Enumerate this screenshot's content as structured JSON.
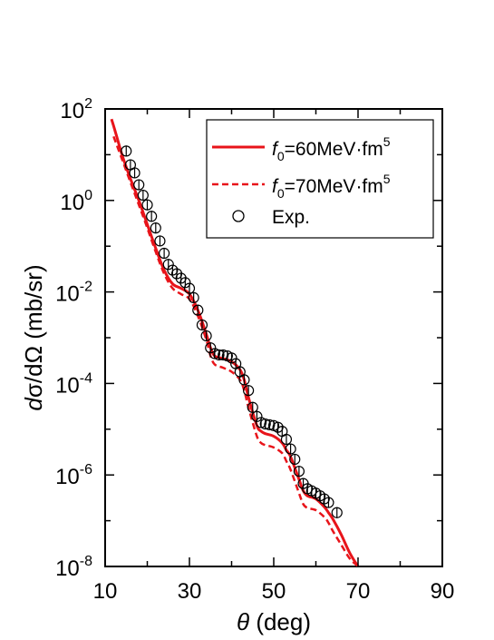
{
  "chart_data": {
    "type": "scatter",
    "xlabel": {
      "sym": "θ",
      "unit": " (deg)"
    },
    "ylabel": {
      "d": "d",
      "sigma": "σ",
      "slash": "/",
      "dOmega": "dΩ",
      "unit": " (mb/sr)"
    },
    "xlim": [
      10,
      90
    ],
    "ylim": [
      1e-08,
      100
    ],
    "y_scale": "log",
    "x_ticks": [
      "10",
      "30",
      "50",
      "70",
      "90"
    ],
    "y_ticks": [
      {
        "base": "10",
        "exp": "2"
      },
      {
        "base": "10",
        "exp": "0"
      },
      {
        "base": "10",
        "exp": "-2"
      },
      {
        "base": "10",
        "exp": "-4"
      },
      {
        "base": "10",
        "exp": "-6"
      },
      {
        "base": "10",
        "exp": "-8"
      }
    ],
    "legend_position": "top-right",
    "legend": [
      {
        "f": "f",
        "sub": "0",
        "text": "=60MeV·fm",
        "sup": "5"
      },
      {
        "f": "f",
        "sub": "0",
        "text": "=70MeV·fm",
        "sup": "5"
      },
      {
        "text": "Exp."
      }
    ],
    "colors": {
      "theory": "#e8141a",
      "exp": "#000000"
    },
    "series": [
      {
        "style": "solid",
        "x": [
          11.5,
          12.5,
          14,
          16,
          18,
          20,
          22,
          24,
          26,
          28,
          30,
          32,
          34,
          35,
          36,
          38,
          40,
          42,
          43,
          44,
          46,
          47,
          48,
          50,
          52,
          53,
          54,
          56,
          57,
          58,
          60,
          62,
          63,
          64,
          66,
          68,
          70
        ],
        "y": [
          60,
          30,
          10,
          3,
          1.0,
          0.3,
          0.09,
          0.03,
          0.015,
          0.012,
          0.009,
          0.004,
          0.0012,
          0.0006,
          0.0004,
          0.00035,
          0.0003,
          0.0002,
          0.00012,
          5e-05,
          1.2e-05,
          9e-06,
          8e-06,
          7e-06,
          5e-06,
          3.5e-06,
          2.5e-06,
          8e-07,
          4.5e-07,
          3.5e-07,
          3e-07,
          2e-07,
          1.5e-07,
          1.1e-07,
          5e-08,
          2e-08,
          1e-08
        ]
      },
      {
        "style": "dashed",
        "x": [
          12,
          14,
          16,
          18,
          20,
          22,
          24,
          26,
          28,
          30,
          32,
          34,
          35,
          36,
          38,
          40,
          42,
          43,
          44,
          46,
          47,
          48,
          50,
          52,
          53,
          54,
          56,
          57,
          58,
          60,
          62,
          63,
          64,
          66,
          68,
          70,
          71.5
        ],
        "y": [
          25,
          8,
          2.5,
          0.8,
          0.25,
          0.075,
          0.025,
          0.012,
          0.009,
          0.007,
          0.003,
          0.0009,
          0.0004,
          0.00026,
          0.00022,
          0.00018,
          0.00012,
          7e-05,
          3e-05,
          7e-06,
          5e-06,
          4.5e-06,
          4e-06,
          3e-06,
          2e-06,
          1.3e-06,
          4e-07,
          2.3e-07,
          1.9e-07,
          1.7e-07,
          1.2e-07,
          9e-08,
          6e-08,
          3e-08,
          1.5e-08,
          1e-08,
          7e-09
        ]
      }
    ],
    "exp_points": {
      "x": [
        15,
        16,
        17,
        18,
        19,
        20,
        21,
        22,
        23,
        24,
        25,
        26,
        27,
        28,
        29,
        30,
        31,
        32,
        33,
        34,
        35,
        36,
        37,
        38,
        39,
        40,
        41,
        42,
        43,
        44,
        45,
        46,
        47,
        48,
        49,
        50,
        51,
        52,
        53,
        54,
        55,
        56,
        57,
        58,
        59,
        60,
        61,
        62,
        63,
        65
      ],
      "y": [
        12,
        6,
        4,
        2.2,
        1.3,
        0.8,
        0.45,
        0.25,
        0.13,
        0.07,
        0.04,
        0.03,
        0.025,
        0.02,
        0.016,
        0.012,
        0.0075,
        0.004,
        0.0019,
        0.0011,
        0.0006,
        0.00045,
        0.00042,
        0.00042,
        0.0004,
        0.00036,
        0.00027,
        0.00018,
        0.00012,
        7e-05,
        3e-05,
        1.9e-05,
        1.4e-05,
        1.3e-05,
        1.25e-05,
        1.2e-05,
        1.1e-05,
        9e-06,
        6e-06,
        3.7e-06,
        2.2e-06,
        1.2e-06,
        6.5e-07,
        5e-07,
        4.5e-07,
        4e-07,
        3.5e-07,
        3e-07,
        2.5e-07,
        1.5e-07
      ]
    }
  }
}
